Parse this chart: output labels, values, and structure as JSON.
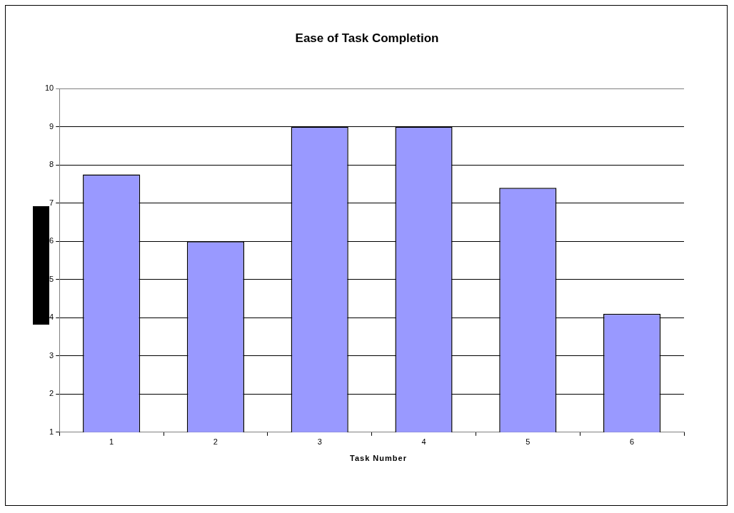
{
  "chart_data": {
    "type": "bar",
    "title": "Ease of Task Completion",
    "xlabel": "Task Number",
    "categories": [
      "1",
      "2",
      "3",
      "4",
      "5",
      "6"
    ],
    "values": [
      7.75,
      6,
      9,
      9,
      7.4,
      4.1
    ],
    "color": "#9999ff",
    "ylim": [
      1,
      10
    ],
    "yticks": [
      1,
      2,
      3,
      4,
      5,
      6,
      7,
      8,
      9,
      10
    ],
    "grid": "y",
    "legend": false
  }
}
